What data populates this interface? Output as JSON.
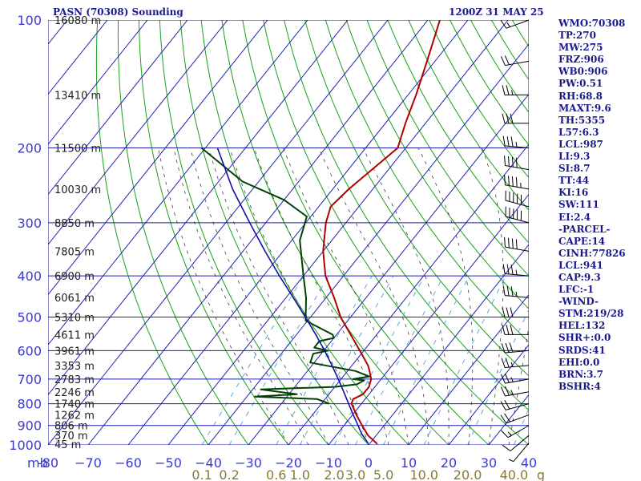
{
  "header": {
    "title": "PASN (70308) Sounding",
    "time": "1200Z 31 MAY 25"
  },
  "indices": [
    "WMO:70308",
    "TP:270",
    "MW:275",
    "FRZ:906",
    "WB0:906",
    "PW:0.51",
    "RH:68.8",
    "MAXT:9.6",
    "TH:5355",
    "L57:6.3",
    "LCL:987",
    "LI:9.3",
    "SI:8.7",
    "TT:44",
    "KI:16",
    "SW:111",
    "EI:2.4",
    "-PARCEL-",
    "CAPE:14",
    "CINH:77826",
    "LCL:941",
    "CAP:9.3",
    "LFC:-1",
    "-WIND-",
    "STM:219/28",
    "HEL:132",
    "SHR+:0.0",
    "SRDS:41",
    "EHI:0.0",
    "BRN:3.7",
    "BSHR:4"
  ],
  "colors": {
    "temperature": "#b00000",
    "dewpoint": "#004000",
    "parcel": "#1010a0",
    "isobar_isotherm_grid": "#1c1cb0",
    "dry_adiabat": "#18a018",
    "moist_adiabat": "#404040",
    "mixing_ratio": "#4aa0d0",
    "text": "#1a1a8c"
  },
  "chart_data": {
    "type": "line",
    "title": "PASN (70308) Sounding",
    "subtitle": "1200Z 31 MAY 25",
    "y_axis": {
      "unit_label": "mb",
      "scale": "log",
      "range": [
        1000,
        100
      ],
      "ticks": [
        1000,
        900,
        800,
        700,
        600,
        500,
        400,
        300,
        200,
        100
      ]
    },
    "x_axis": {
      "range": [
        -80,
        40
      ],
      "ticks": [
        -80,
        -70,
        -60,
        -50,
        -40,
        -30,
        -20,
        -10,
        0,
        10,
        20,
        30,
        40
      ],
      "tick_labels": [
        "-80",
        "−70",
        "−60",
        "−50",
        "−40",
        "−30",
        "−20",
        "−10",
        "0",
        "10",
        "20",
        "30",
        "40"
      ]
    },
    "mixing_ratio_labels": [
      "0.1",
      "0.2",
      "0.6",
      "1.0",
      "2.0",
      "3.0",
      "5.0",
      "10.0",
      "20.0",
      "40.0",
      "g"
    ],
    "height_labels": [
      "16080 m",
      "13410 m",
      "11500 m",
      "10030 m",
      "8850 m",
      "7805 m",
      "6900 m",
      "6061 m",
      "5310 m",
      "4611 m",
      "3961 m",
      "3353 m",
      "2783 m",
      "2246 m",
      "1740 m",
      "1262 m",
      "806 m",
      "370 m",
      "45 m"
    ],
    "grid": true,
    "series": [
      {
        "key": "temperature",
        "points": [
          [
            995,
            2.0
          ],
          [
            950,
            -2.0
          ],
          [
            900,
            -5.5
          ],
          [
            850,
            -9.0
          ],
          [
            800,
            -12.5
          ],
          [
            780,
            -13.0
          ],
          [
            760,
            -11.5
          ],
          [
            730,
            -11.5
          ],
          [
            700,
            -12.5
          ],
          [
            670,
            -14.5
          ],
          [
            650,
            -16.0
          ],
          [
            600,
            -21.0
          ],
          [
            550,
            -26.5
          ],
          [
            500,
            -32.5
          ],
          [
            450,
            -38.0
          ],
          [
            400,
            -44.5
          ],
          [
            350,
            -50.0
          ],
          [
            300,
            -55.0
          ],
          [
            275,
            -57.0
          ],
          [
            250,
            -56.0
          ],
          [
            200,
            -52.0
          ],
          [
            175,
            -55.0
          ],
          [
            150,
            -58.0
          ],
          [
            125,
            -62.0
          ],
          [
            100,
            -67.0
          ]
        ]
      },
      {
        "key": "dewpoint",
        "points": [
          [
            800,
            -18.0
          ],
          [
            780,
            -22.0
          ],
          [
            770,
            -38.0
          ],
          [
            760,
            -28.0
          ],
          [
            740,
            -38.0
          ],
          [
            730,
            -20.0
          ],
          [
            720,
            -15.0
          ],
          [
            705,
            -14.0
          ],
          [
            700,
            -17.0
          ],
          [
            690,
            -13.5
          ],
          [
            670,
            -18.0
          ],
          [
            640,
            -31.0
          ],
          [
            610,
            -32.0
          ],
          [
            600,
            -29.0
          ],
          [
            590,
            -33.0
          ],
          [
            570,
            -33.0
          ],
          [
            560,
            -30.0
          ],
          [
            550,
            -31.0
          ],
          [
            510,
            -40.5
          ],
          [
            450,
            -45.0
          ],
          [
            400,
            -50.0
          ],
          [
            330,
            -58.0
          ],
          [
            290,
            -61.0
          ],
          [
            265,
            -70.0
          ],
          [
            240,
            -84.0
          ],
          [
            200,
            -101.0
          ]
        ]
      },
      {
        "key": "parcel",
        "points": [
          [
            990,
            -0.5
          ],
          [
            941,
            -4.0
          ],
          [
            900,
            -6.5
          ],
          [
            850,
            -9.8
          ],
          [
            800,
            -13.2
          ],
          [
            750,
            -16.8
          ],
          [
            700,
            -20.7
          ],
          [
            650,
            -25.0
          ],
          [
            600,
            -29.8
          ],
          [
            550,
            -35.2
          ],
          [
            500,
            -41.3
          ],
          [
            450,
            -48.2
          ],
          [
            400,
            -56.0
          ],
          [
            350,
            -64.5
          ],
          [
            300,
            -74.0
          ],
          [
            250,
            -85.0
          ],
          [
            200,
            -97.0
          ]
        ]
      }
    ],
    "wind_barbs": [
      {
        "p": 990,
        "dir": 220,
        "kt": 5
      },
      {
        "p": 950,
        "dir": 230,
        "kt": 10
      },
      {
        "p": 900,
        "dir": 240,
        "kt": 15
      },
      {
        "p": 850,
        "dir": 250,
        "kt": 20
      },
      {
        "p": 800,
        "dir": 255,
        "kt": 20
      },
      {
        "p": 750,
        "dir": 260,
        "kt": 25
      },
      {
        "p": 700,
        "dir": 260,
        "kt": 25
      },
      {
        "p": 650,
        "dir": 265,
        "kt": 25
      },
      {
        "p": 600,
        "dir": 265,
        "kt": 30
      },
      {
        "p": 550,
        "dir": 270,
        "kt": 30
      },
      {
        "p": 500,
        "dir": 270,
        "kt": 30
      },
      {
        "p": 450,
        "dir": 275,
        "kt": 35
      },
      {
        "p": 400,
        "dir": 275,
        "kt": 35
      },
      {
        "p": 350,
        "dir": 280,
        "kt": 40
      },
      {
        "p": 300,
        "dir": 285,
        "kt": 50
      },
      {
        "p": 275,
        "dir": 285,
        "kt": 50
      },
      {
        "p": 250,
        "dir": 280,
        "kt": 45
      },
      {
        "p": 225,
        "dir": 280,
        "kt": 40
      },
      {
        "p": 200,
        "dir": 275,
        "kt": 35
      },
      {
        "p": 175,
        "dir": 270,
        "kt": 30
      },
      {
        "p": 150,
        "dir": 270,
        "kt": 25
      },
      {
        "p": 125,
        "dir": 260,
        "kt": 20
      },
      {
        "p": 100,
        "dir": 250,
        "kt": 15
      }
    ]
  }
}
